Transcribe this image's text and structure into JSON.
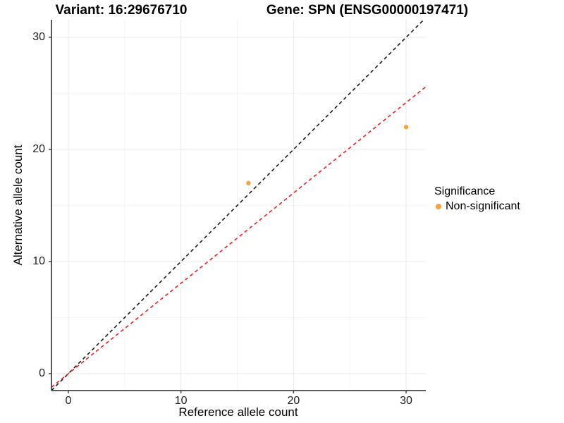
{
  "titles": {
    "variant": "Variant: 16:29676710",
    "gene": "Gene: SPN (ENSG00000197471)"
  },
  "legend": {
    "title": "Significance",
    "items": [
      {
        "label": "Non-significant",
        "color": "#F9A242"
      }
    ]
  },
  "colors": {
    "point": "#F9A242",
    "identity_line": "#1A1A1A",
    "fit_line": "#EE2222",
    "axis_line": "#454545",
    "major_grid": "#E9E9E9",
    "minor_grid": "#F4F4F4",
    "tick_text": "#1f1f1f"
  },
  "chart_data": {
    "type": "scatter",
    "title_left": "Variant: 16:29676710",
    "title_right": "Gene: SPN (ENSG00000197471)",
    "xlabel": "Reference allele count",
    "ylabel": "Alternative allele count",
    "xlim": [
      -1.5,
      31.75
    ],
    "ylim": [
      -1.51,
      31.57
    ],
    "x_ticks": [
      0,
      10,
      20,
      30
    ],
    "y_ticks": [
      0,
      10,
      20,
      30
    ],
    "x_minor_ticks": [
      5,
      15,
      25
    ],
    "y_minor_ticks": [
      5,
      15,
      25
    ],
    "grid": true,
    "legend_position": "right",
    "series": [
      {
        "name": "Non-significant",
        "color": "#F9A242",
        "points": [
          {
            "x": 16,
            "y": 17
          },
          {
            "x": 30,
            "y": 22
          }
        ]
      }
    ],
    "lines": [
      {
        "name": "identity",
        "slope": 1.0,
        "intercept": 0,
        "style": "dashed",
        "color": "#1A1A1A"
      },
      {
        "name": "fit",
        "slope": 0.806,
        "intercept": 0,
        "style": "dashed",
        "color": "#EE2222"
      }
    ]
  }
}
